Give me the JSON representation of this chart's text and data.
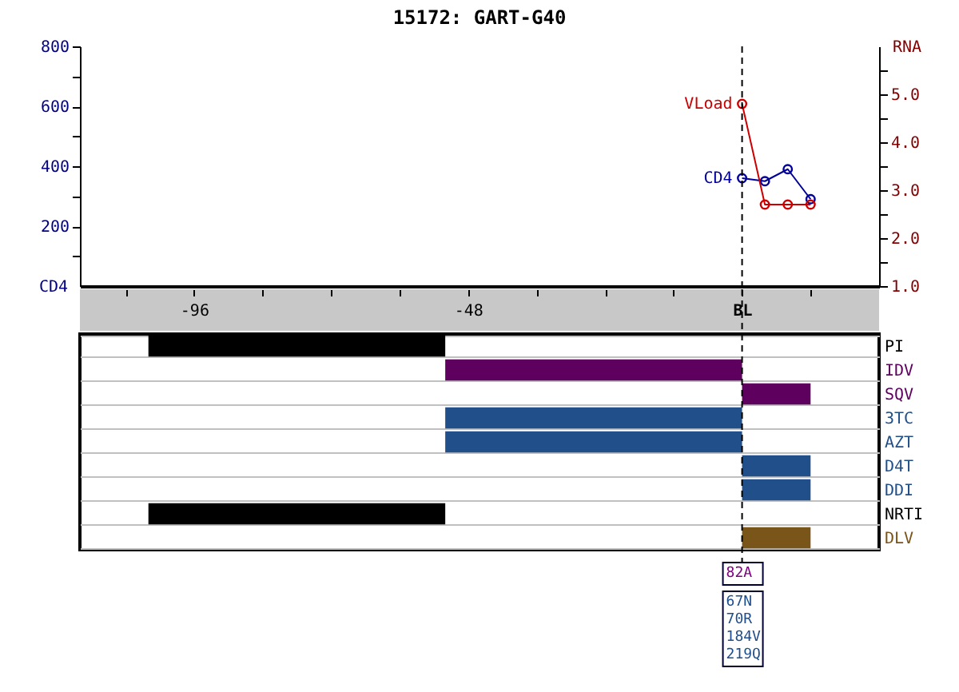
{
  "chart_data": [
    {
      "type": "line",
      "title": "15172: GART-G40",
      "ylabel": "CD4",
      "y2label": "RNA",
      "x": [
        0,
        4,
        8,
        12
      ],
      "series": [
        {
          "name": "CD4",
          "color": "#000099",
          "values": [
            360,
            350,
            390,
            290
          ]
        },
        {
          "name": "VLoad",
          "color": "#cc0000",
          "values": [
            4.8,
            2.7,
            2.7,
            2.7
          ],
          "axis": "y2"
        }
      ],
      "xlim": [
        -116,
        24
      ],
      "xticks": [
        {
          "value": -108,
          "label": null
        },
        -96,
        {
          "value": -84,
          "label": null
        },
        {
          "value": -72,
          "label": null
        },
        {
          "value": -60,
          "label": null
        },
        -48,
        {
          "value": -36,
          "label": null
        },
        {
          "value": -24,
          "label": null
        },
        {
          "value": -12,
          "label": null
        },
        {
          "value": 0,
          "label": "BL"
        },
        {
          "value": 12,
          "label": null
        }
      ],
      "ylim": [
        0,
        800
      ],
      "yticks": [
        {
          "value": 100,
          "label": null
        },
        200,
        {
          "value": 300,
          "label": null
        },
        400,
        {
          "value": 500,
          "label": null
        },
        600,
        {
          "value": 700,
          "label": null
        },
        800
      ],
      "y2lim": [
        1,
        6
      ],
      "y2ticks": [
        {
          "value": 1,
          "label": "1.0"
        },
        {
          "value": 1.5,
          "label": null
        },
        {
          "value": 2,
          "label": "2.0"
        },
        {
          "value": 2.5,
          "label": null
        },
        {
          "value": 3,
          "label": "3.0"
        },
        {
          "value": 3.5,
          "label": null
        },
        {
          "value": 4,
          "label": "4.0"
        },
        {
          "value": 4.5,
          "label": null
        },
        {
          "value": 5,
          "label": "5.0"
        },
        {
          "value": 5.5,
          "label": null
        }
      ],
      "ref_lines": [
        {
          "axis": "x",
          "value": 0,
          "color": "#000000",
          "line_style": "dashed"
        }
      ],
      "marker": "circle",
      "line_style": "solid"
    },
    {
      "type": "bar",
      "orientation": "horizontal",
      "categories": [
        "PI",
        "IDV",
        "SQV",
        "3TC",
        "AZT",
        "D4T",
        "DDI",
        "NRTI",
        "DLV"
      ],
      "base": [
        -104,
        -52,
        0,
        -52,
        -52,
        0,
        0,
        -104,
        0
      ],
      "values": [
        52,
        52,
        12,
        52,
        52,
        12,
        12,
        52,
        12
      ],
      "colors": [
        "#000000",
        "#5e005e",
        "#5e005e",
        "#204f8a",
        "#204f8a",
        "#204f8a",
        "#204f8a",
        "#000000",
        "#7a5519"
      ],
      "xlim": [
        -116,
        24
      ],
      "tick_labels": "y",
      "grid": "y",
      "ref_lines": [
        {
          "axis": "x",
          "value": 0,
          "color": "#000000",
          "line_style": "dashed"
        }
      ],
      "annotations": [
        "82A",
        "67N\n70R\n184V\n219Q"
      ]
    }
  ]
}
